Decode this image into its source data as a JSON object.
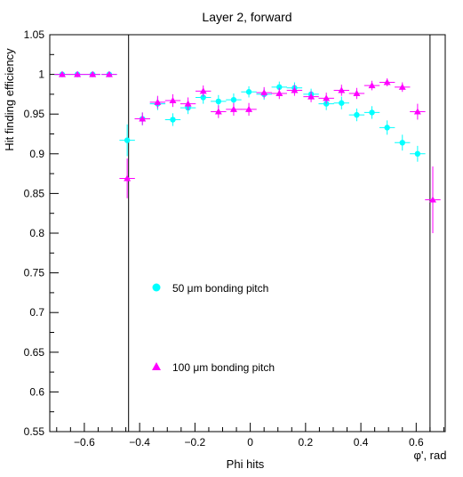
{
  "chart_data": {
    "type": "scatter",
    "title": "Layer 2, forward",
    "xlabel": "Phi hits",
    "xunit": "φ', rad",
    "ylabel": "Hit finding efficiency",
    "xlim": [
      -0.725,
      0.705
    ],
    "ylim": [
      0.55,
      1.05
    ],
    "x_ticks": [
      -0.6,
      -0.4,
      -0.2,
      0,
      0.2,
      0.4,
      0.6
    ],
    "x_tick_labels": [
      "−0.6",
      "−0.4",
      "−0.2",
      "0",
      "0.2",
      "0.4",
      "0.6"
    ],
    "y_ticks": [
      0.55,
      0.6,
      0.65,
      0.7,
      0.75,
      0.8,
      0.85,
      0.9,
      0.95,
      1,
      1.05
    ],
    "y_tick_labels": [
      "0.55",
      "0.6",
      "0.65",
      "0.7",
      "0.75",
      "0.8",
      "0.85",
      "0.9",
      "0.95",
      "1",
      "1.05"
    ],
    "vertical_lines": [
      -0.44,
      0.65
    ],
    "grid": false,
    "legend_placement": "inside-left",
    "x_error": 0.028,
    "series": [
      {
        "name": "50 μm bonding pitch",
        "marker": "circle",
        "color": "#00ffff",
        "points": [
          {
            "x": -0.68,
            "y": 1.0,
            "err": 0.003
          },
          {
            "x": -0.625,
            "y": 1.0,
            "err": 0.003
          },
          {
            "x": -0.57,
            "y": 1.0,
            "err": 0.003
          },
          {
            "x": -0.51,
            "y": 1.0,
            "err": 0.003
          },
          {
            "x": -0.445,
            "y": 0.917,
            "err": 0.02
          },
          {
            "x": -0.39,
            "y": 0.944,
            "err": 0.008
          },
          {
            "x": -0.335,
            "y": 0.963,
            "err": 0.008
          },
          {
            "x": -0.28,
            "y": 0.943,
            "err": 0.008
          },
          {
            "x": -0.225,
            "y": 0.958,
            "err": 0.008
          },
          {
            "x": -0.17,
            "y": 0.971,
            "err": 0.008
          },
          {
            "x": -0.115,
            "y": 0.966,
            "err": 0.008
          },
          {
            "x": -0.06,
            "y": 0.968,
            "err": 0.008
          },
          {
            "x": -0.005,
            "y": 0.978,
            "err": 0.007
          },
          {
            "x": 0.05,
            "y": 0.975,
            "err": 0.007
          },
          {
            "x": 0.105,
            "y": 0.984,
            "err": 0.007
          },
          {
            "x": 0.16,
            "y": 0.983,
            "err": 0.007
          },
          {
            "x": 0.22,
            "y": 0.975,
            "err": 0.007
          },
          {
            "x": 0.275,
            "y": 0.963,
            "err": 0.008
          },
          {
            "x": 0.33,
            "y": 0.964,
            "err": 0.008
          },
          {
            "x": 0.385,
            "y": 0.949,
            "err": 0.008
          },
          {
            "x": 0.44,
            "y": 0.952,
            "err": 0.008
          },
          {
            "x": 0.495,
            "y": 0.933,
            "err": 0.009
          },
          {
            "x": 0.55,
            "y": 0.914,
            "err": 0.01
          },
          {
            "x": 0.605,
            "y": 0.9,
            "err": 0.01
          }
        ]
      },
      {
        "name": "100 μm bonding pitch",
        "marker": "triangle",
        "color": "#ff00ff",
        "points": [
          {
            "x": -0.68,
            "y": 1.0,
            "err": 0.003
          },
          {
            "x": -0.625,
            "y": 1.0,
            "err": 0.003
          },
          {
            "x": -0.57,
            "y": 1.0,
            "err": 0.003
          },
          {
            "x": -0.51,
            "y": 1.0,
            "err": 0.003
          },
          {
            "x": -0.445,
            "y": 0.869,
            "err": 0.025
          },
          {
            "x": -0.39,
            "y": 0.944,
            "err": 0.008
          },
          {
            "x": -0.335,
            "y": 0.965,
            "err": 0.008
          },
          {
            "x": -0.28,
            "y": 0.967,
            "err": 0.008
          },
          {
            "x": -0.225,
            "y": 0.963,
            "err": 0.008
          },
          {
            "x": -0.17,
            "y": 0.979,
            "err": 0.007
          },
          {
            "x": -0.115,
            "y": 0.953,
            "err": 0.008
          },
          {
            "x": -0.06,
            "y": 0.956,
            "err": 0.008
          },
          {
            "x": -0.005,
            "y": 0.956,
            "err": 0.008
          },
          {
            "x": 0.05,
            "y": 0.977,
            "err": 0.007
          },
          {
            "x": 0.105,
            "y": 0.976,
            "err": 0.007
          },
          {
            "x": 0.16,
            "y": 0.98,
            "err": 0.007
          },
          {
            "x": 0.22,
            "y": 0.972,
            "err": 0.007
          },
          {
            "x": 0.275,
            "y": 0.97,
            "err": 0.007
          },
          {
            "x": 0.33,
            "y": 0.98,
            "err": 0.007
          },
          {
            "x": 0.385,
            "y": 0.976,
            "err": 0.007
          },
          {
            "x": 0.44,
            "y": 0.986,
            "err": 0.006
          },
          {
            "x": 0.495,
            "y": 0.99,
            "err": 0.005
          },
          {
            "x": 0.55,
            "y": 0.984,
            "err": 0.006
          },
          {
            "x": 0.605,
            "y": 0.953,
            "err": 0.01
          },
          {
            "x": 0.66,
            "y": 0.842,
            "err": 0.042
          }
        ]
      }
    ]
  }
}
